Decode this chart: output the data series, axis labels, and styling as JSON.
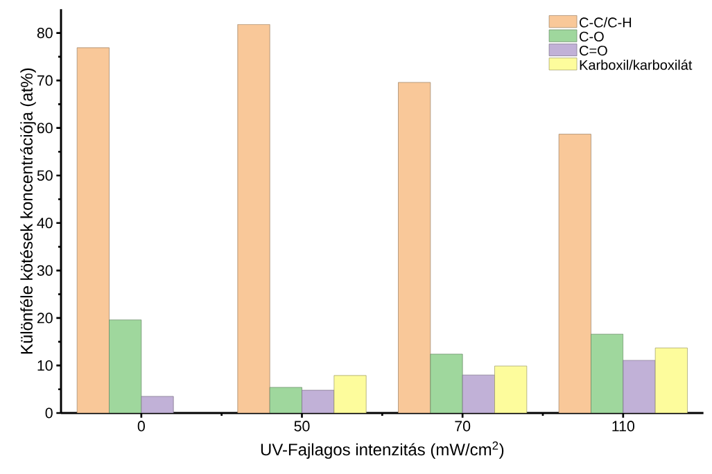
{
  "chart_data": {
    "type": "bar",
    "categories": [
      "0",
      "50",
      "70",
      "110"
    ],
    "xlabel": "UV-Fajlagos intenzitás (mW/cm$^{2}$)",
    "ylabel": "Különféle kötések koncentrációja (at%)",
    "ylim": [
      0,
      85
    ],
    "yticks": [
      0,
      10,
      20,
      30,
      40,
      50,
      60,
      70,
      80
    ],
    "legend": "top right",
    "series": [
      {
        "name": "C-C/C-H",
        "color": "#f9c899",
        "values": [
          76.9,
          81.8,
          69.6,
          58.7
        ]
      },
      {
        "name": "C-O",
        "color": "#9fd79d",
        "values": [
          19.6,
          5.4,
          12.4,
          16.6
        ]
      },
      {
        "name": "C=O",
        "color": "#c1b1d7",
        "values": [
          3.5,
          4.8,
          8.0,
          11.1
        ]
      },
      {
        "name": "Karboxil/karboxilát",
        "color": "#fdfc9c",
        "values": [
          null,
          7.9,
          9.9,
          13.7
        ]
      }
    ]
  }
}
